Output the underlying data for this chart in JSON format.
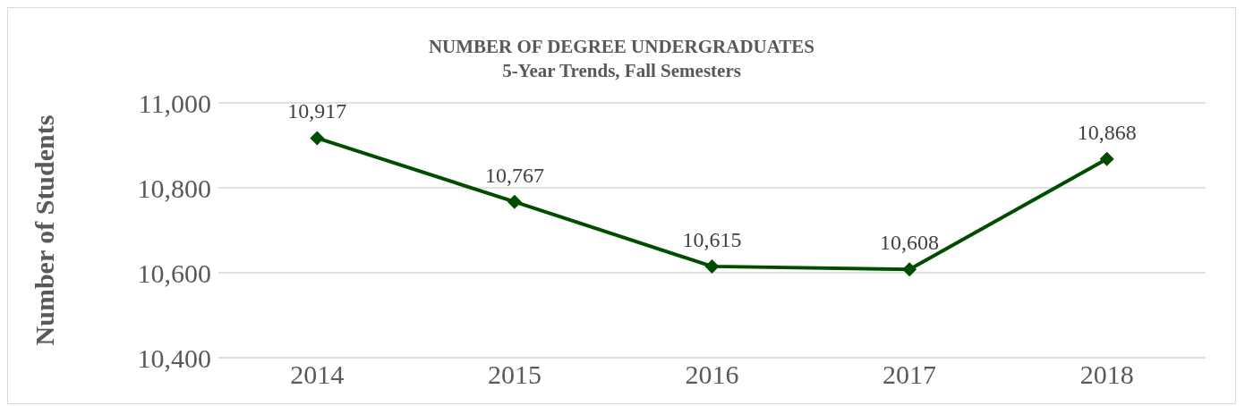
{
  "chart_data": {
    "type": "line",
    "title": "NUMBER OF DEGREE UNDERGRADUATES",
    "subtitle": "5-Year Trends, Fall Semesters",
    "ylabel": "Number of Students",
    "categories": [
      "2014",
      "2015",
      "2016",
      "2017",
      "2018"
    ],
    "series": [
      {
        "color": "#004d00",
        "values": [
          10917,
          10767,
          10615,
          10608,
          10868
        ],
        "value_labels": [
          "10,917",
          "10,767",
          "10,615",
          "10,608",
          "10,868"
        ]
      }
    ],
    "ylim": [
      10400,
      11000
    ],
    "yticks": [
      {
        "value": 10400,
        "label": "10,400"
      },
      {
        "value": 10600,
        "label": "10,600"
      },
      {
        "value": 10800,
        "label": "10,800"
      },
      {
        "value": 11000,
        "label": "11,000"
      }
    ],
    "grid": "y",
    "marker": "diamond",
    "line_style": "solid",
    "legend": false
  }
}
